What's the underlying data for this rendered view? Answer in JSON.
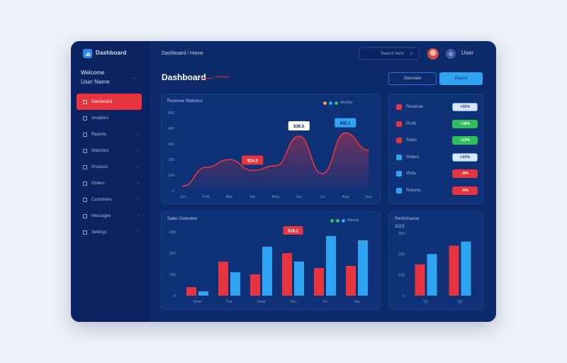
{
  "colors": {
    "red": "#e8343f",
    "blue": "#2fa4f3",
    "green": "#2fbf5a",
    "navy": "#0d2a6b"
  },
  "app": {
    "brand": "Dashboard",
    "breadcrumb": "Dashboard / Home",
    "search_placeholder": "Search here",
    "top_user": "User",
    "brand_icon": "chart-icon",
    "search_icon": "search-icon",
    "settings_icon": "gear-icon"
  },
  "profile": {
    "name": "Welcome",
    "role": "User Name"
  },
  "sidebar": {
    "items": [
      {
        "label": "Dashboard",
        "icon": "home-icon"
      },
      {
        "label": "Analytics",
        "icon": "chart-icon"
      },
      {
        "label": "Reports",
        "icon": "report-icon"
      },
      {
        "label": "Statistics",
        "icon": "stats-icon"
      },
      {
        "label": "Products",
        "icon": "box-icon"
      },
      {
        "label": "Orders",
        "icon": "cart-icon"
      },
      {
        "label": "Customers",
        "icon": "users-icon"
      },
      {
        "label": "Messages",
        "icon": "mail-icon"
      },
      {
        "label": "Settings",
        "icon": "gear-icon"
      }
    ]
  },
  "page": {
    "title": "Dashboard",
    "subtitle": "Overview",
    "tab_a": "Overview",
    "tab_b": "Export"
  },
  "line_panel": {
    "title": "Revenue Statistics",
    "legend_text": "Monthly"
  },
  "bar_panel": {
    "title": "Sales Overview",
    "legend_text": "Weekly"
  },
  "small_panel": {
    "title": "Performance",
    "subtitle": "2023"
  },
  "list_panel": {
    "rows": [
      {
        "label": "Revenue",
        "badge": "+25%",
        "badge_color": "blue",
        "icon_color": "red"
      },
      {
        "label": "Profit",
        "badge": "+18%",
        "badge_color": "green",
        "icon_color": "red"
      },
      {
        "label": "Sales",
        "badge": "+12%",
        "badge_color": "green",
        "icon_color": "red"
      },
      {
        "label": "Orders",
        "badge": "+10%",
        "badge_color": "blue",
        "icon_color": "blue"
      },
      {
        "label": "Visits",
        "badge": "-8%",
        "badge_color": "red",
        "icon_color": "blue"
      },
      {
        "label": "Returns",
        "badge": "-5%",
        "badge_color": "red",
        "icon_color": "blue"
      }
    ]
  },
  "chart_data": [
    {
      "type": "area",
      "title": "Revenue Statistics",
      "x": [
        "Jan",
        "Feb",
        "Mar",
        "Apr",
        "May",
        "Jun",
        "Jul",
        "Aug",
        "Sep"
      ],
      "y_ticks": [
        "0",
        "100",
        "200",
        "300",
        "400",
        "500"
      ],
      "ylim": [
        0,
        500
      ],
      "series": [
        {
          "name": "Revenue",
          "values": [
            30,
            150,
            200,
            130,
            160,
            350,
            110,
            370,
            260
          ]
        }
      ],
      "annotations": [
        {
          "text": "$24.8",
          "x_index": 3
        },
        {
          "text": "$36.5",
          "x_index": 5
        },
        {
          "text": "$42.1",
          "x_index": 7
        }
      ]
    },
    {
      "type": "bar",
      "title": "Sales Overview",
      "categories": [
        "Mon",
        "Tue",
        "Wed",
        "Thu",
        "Fri",
        "Sat"
      ],
      "y_ticks": [
        "0",
        "100",
        "200",
        "300"
      ],
      "ylim": [
        0,
        300
      ],
      "series": [
        {
          "name": "Red",
          "values": [
            40,
            160,
            100,
            200,
            130,
            140
          ]
        },
        {
          "name": "Blue",
          "values": [
            20,
            110,
            230,
            160,
            280,
            260
          ]
        }
      ],
      "annotations": [
        {
          "text": "$18.2",
          "x_index": 3
        }
      ]
    },
    {
      "type": "bar",
      "title": "Performance",
      "categories": [
        "Q1",
        "Q2"
      ],
      "y_ticks": [
        "0",
        "100",
        "200",
        "300"
      ],
      "ylim": [
        0,
        300
      ],
      "series": [
        {
          "name": "Red",
          "values": [
            150,
            240
          ]
        },
        {
          "name": "Blue",
          "values": [
            200,
            260
          ]
        }
      ]
    }
  ]
}
